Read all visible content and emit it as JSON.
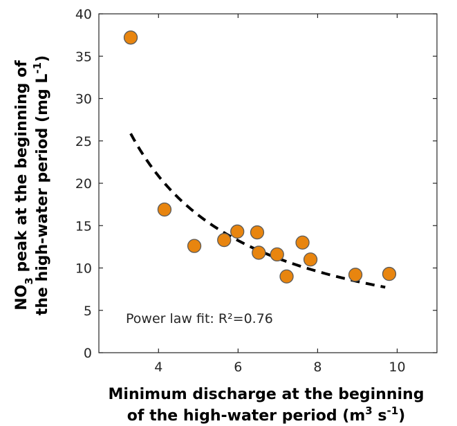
{
  "chart_data": {
    "type": "scatter",
    "xlabel_line1": "Minimum discharge at the beginning",
    "xlabel_line2_pre": "of the high-water period (m",
    "xlabel_sup1": "3",
    "xlabel_mid": " s",
    "xlabel_sup2": "-1",
    "xlabel_post": ")",
    "ylabel_line1_pre": "NO",
    "ylabel_sub": "3",
    "ylabel_line1_post": " peak at the beginning of",
    "ylabel_line2_pre": "the high-water period (mg L",
    "ylabel_sup": "-1",
    "ylabel_line2_post": ")",
    "xlim": [
      2.5,
      11
    ],
    "ylim": [
      0,
      40
    ],
    "xticks": [
      4,
      6,
      8,
      10
    ],
    "yticks": [
      0,
      5,
      10,
      15,
      20,
      25,
      30,
      35,
      40
    ],
    "points": [
      {
        "x": 3.3,
        "y": 37.2
      },
      {
        "x": 4.15,
        "y": 16.9
      },
      {
        "x": 4.9,
        "y": 12.6
      },
      {
        "x": 5.65,
        "y": 13.3
      },
      {
        "x": 5.98,
        "y": 14.3
      },
      {
        "x": 6.48,
        "y": 14.2
      },
      {
        "x": 6.52,
        "y": 11.8
      },
      {
        "x": 6.98,
        "y": 11.6
      },
      {
        "x": 7.22,
        "y": 9.0
      },
      {
        "x": 7.62,
        "y": 13.0
      },
      {
        "x": 7.82,
        "y": 11.0
      },
      {
        "x": 8.95,
        "y": 9.2
      },
      {
        "x": 9.8,
        "y": 9.3
      }
    ],
    "fit": {
      "type": "power",
      "a": 98.5,
      "b": -1.12,
      "x_start": 3.3,
      "x_end": 9.7
    },
    "annotation": "Power law fit: R²=0.76",
    "marker_color": "#E8850F",
    "marker_edge": "#5a5a5a",
    "fit_color": "#000000"
  }
}
